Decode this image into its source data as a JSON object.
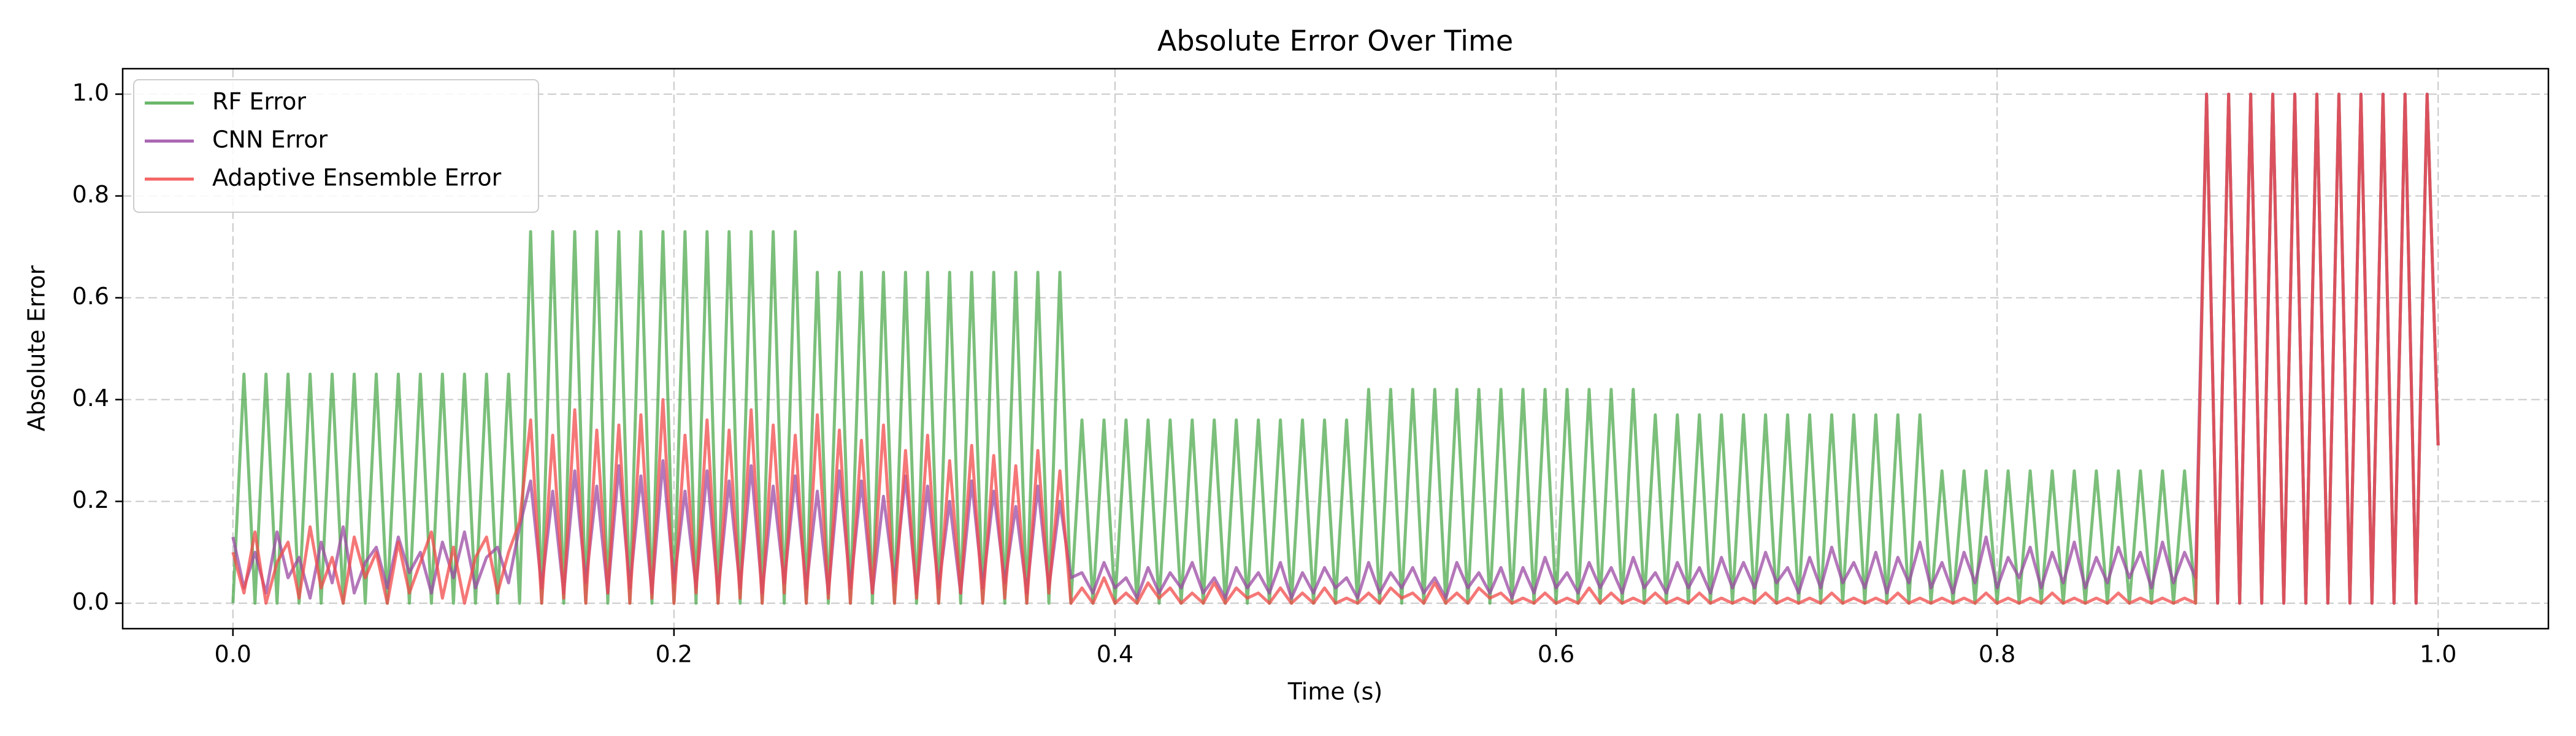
{
  "chart_data": {
    "type": "line",
    "title": "Absolute Error Over Time",
    "xlabel": "Time (s)",
    "ylabel": "Absolute Error",
    "xlim": [
      -0.05,
      1.05
    ],
    "ylim": [
      -0.05,
      1.05
    ],
    "xticks": [
      {
        "value": 0,
        "label": "0.0"
      },
      0.2,
      0.4,
      0.6,
      0.8,
      {
        "value": 1,
        "label": "1.0"
      }
    ],
    "yticks": [
      {
        "value": 0,
        "label": "0.0"
      },
      0.2,
      0.4,
      0.6,
      0.8,
      {
        "value": 1,
        "label": "1.0"
      }
    ],
    "grid": true,
    "legend": "upper left",
    "x": [
      0,
      0.005,
      0.01,
      0.015,
      0.02,
      0.025,
      0.03,
      0.035,
      0.04,
      0.045,
      0.05,
      0.055,
      0.06,
      0.065,
      0.07,
      0.075,
      0.08,
      0.085,
      0.09,
      0.095,
      0.1,
      0.105,
      0.11,
      0.115,
      0.12,
      0.125,
      0.13,
      0.135,
      0.14,
      0.145,
      0.15,
      0.155,
      0.16,
      0.165,
      0.17,
      0.175,
      0.18,
      0.185,
      0.19,
      0.195,
      0.2,
      0.205,
      0.21,
      0.215,
      0.22,
      0.225,
      0.23,
      0.235,
      0.24,
      0.245,
      0.25,
      0.255,
      0.26,
      0.265,
      0.27,
      0.275,
      0.28,
      0.285,
      0.29,
      0.295,
      0.3,
      0.305,
      0.31,
      0.315,
      0.32,
      0.325,
      0.33,
      0.335,
      0.34,
      0.345,
      0.35,
      0.355,
      0.36,
      0.365,
      0.37,
      0.375,
      0.38,
      0.385,
      0.39,
      0.395,
      0.4,
      0.405,
      0.41,
      0.415,
      0.42,
      0.425,
      0.43,
      0.435,
      0.44,
      0.445,
      0.45,
      0.455,
      0.46,
      0.465,
      0.47,
      0.475,
      0.48,
      0.485,
      0.49,
      0.495,
      0.5,
      0.505,
      0.51,
      0.515,
      0.52,
      0.525,
      0.53,
      0.535,
      0.54,
      0.545,
      0.55,
      0.555,
      0.56,
      0.565,
      0.57,
      0.575,
      0.58,
      0.585,
      0.59,
      0.595,
      0.6,
      0.605,
      0.61,
      0.615,
      0.62,
      0.625,
      0.63,
      0.635,
      0.64,
      0.645,
      0.65,
      0.655,
      0.66,
      0.665,
      0.67,
      0.675,
      0.68,
      0.685,
      0.69,
      0.695,
      0.7,
      0.705,
      0.71,
      0.715,
      0.72,
      0.725,
      0.73,
      0.735,
      0.74,
      0.745,
      0.75,
      0.755,
      0.76,
      0.765,
      0.77,
      0.775,
      0.78,
      0.785,
      0.79,
      0.795,
      0.8,
      0.805,
      0.81,
      0.815,
      0.82,
      0.825,
      0.83,
      0.835,
      0.84,
      0.845,
      0.85,
      0.855,
      0.86,
      0.865,
      0.87,
      0.875,
      0.88,
      0.885,
      0.89,
      0.895,
      0.9,
      0.905,
      0.91,
      0.915,
      0.92,
      0.925,
      0.93,
      0.935,
      0.94,
      0.945,
      0.95,
      0.955,
      0.96,
      0.965,
      0.97,
      0.975,
      0.98,
      0.985,
      0.99,
      0.995,
      1
    ],
    "series": [
      {
        "name": "RF Error",
        "color": "#4fa94f",
        "values": [
          0,
          0.45,
          0,
          0.45,
          0,
          0.45,
          0,
          0.45,
          0,
          0.45,
          0,
          0.45,
          0,
          0.45,
          0,
          0.45,
          0,
          0.45,
          0,
          0.45,
          0,
          0.45,
          0,
          0.45,
          0,
          0.45,
          0,
          0.73,
          0,
          0.73,
          0,
          0.73,
          0,
          0.73,
          0,
          0.73,
          0,
          0.73,
          0,
          0.73,
          0,
          0.73,
          0,
          0.73,
          0,
          0.73,
          0,
          0.73,
          0,
          0.73,
          0,
          0.73,
          0,
          0.65,
          0,
          0.65,
          0,
          0.65,
          0,
          0.65,
          0,
          0.65,
          0,
          0.65,
          0,
          0.65,
          0,
          0.65,
          0,
          0.65,
          0,
          0.65,
          0,
          0.65,
          0,
          0.65,
          0,
          0.36,
          0,
          0.36,
          0,
          0.36,
          0,
          0.36,
          0,
          0.36,
          0,
          0.36,
          0,
          0.36,
          0,
          0.36,
          0,
          0.36,
          0,
          0.36,
          0,
          0.36,
          0,
          0.36,
          0,
          0.36,
          0,
          0.42,
          0,
          0.42,
          0,
          0.42,
          0,
          0.42,
          0,
          0.42,
          0,
          0.42,
          0,
          0.42,
          0,
          0.42,
          0,
          0.42,
          0,
          0.42,
          0,
          0.42,
          0,
          0.42,
          0,
          0.42,
          0,
          0.37,
          0,
          0.37,
          0,
          0.37,
          0,
          0.37,
          0,
          0.37,
          0,
          0.37,
          0,
          0.37,
          0,
          0.37,
          0,
          0.37,
          0,
          0.37,
          0,
          0.37,
          0,
          0.37,
          0,
          0.37,
          0,
          0.26,
          0,
          0.26,
          0,
          0.26,
          0,
          0.26,
          0,
          0.26,
          0,
          0.26,
          0,
          0.26,
          0,
          0.26,
          0,
          0.26,
          0,
          0.26,
          0,
          0.26,
          0,
          0.26,
          0,
          1,
          0,
          1,
          0,
          1,
          0,
          1,
          0,
          1,
          0,
          1,
          0,
          1,
          0,
          1,
          0,
          1,
          0,
          1,
          0,
          1,
          0.31
        ]
      },
      {
        "name": "CNN Error",
        "color": "#9b4aa3",
        "values": [
          0.13,
          0.03,
          0.1,
          0.02,
          0.14,
          0.05,
          0.09,
          0.01,
          0.12,
          0.04,
          0.15,
          0.02,
          0.08,
          0.11,
          0.03,
          0.13,
          0.06,
          0.1,
          0.02,
          0.12,
          0.05,
          0.14,
          0.03,
          0.09,
          0.11,
          0.04,
          0.15,
          0.24,
          0.03,
          0.22,
          0.02,
          0.26,
          0.04,
          0.23,
          0.02,
          0.27,
          0.03,
          0.25,
          0.02,
          0.28,
          0.04,
          0.22,
          0.03,
          0.26,
          0.02,
          0.24,
          0.03,
          0.27,
          0.02,
          0.23,
          0.04,
          0.25,
          0.03,
          0.22,
          0.02,
          0.26,
          0.03,
          0.24,
          0.02,
          0.21,
          0.04,
          0.25,
          0.02,
          0.23,
          0.03,
          0.2,
          0.02,
          0.24,
          0.03,
          0.22,
          0.04,
          0.19,
          0.02,
          0.23,
          0.03,
          0.2,
          0.05,
          0.06,
          0.02,
          0.08,
          0.03,
          0.05,
          0.01,
          0.07,
          0.02,
          0.06,
          0.03,
          0.08,
          0.02,
          0.05,
          0.01,
          0.07,
          0.03,
          0.06,
          0.02,
          0.08,
          0.01,
          0.06,
          0.02,
          0.07,
          0.03,
          0.05,
          0.01,
          0.08,
          0.02,
          0.06,
          0.03,
          0.07,
          0.02,
          0.05,
          0.01,
          0.08,
          0.03,
          0.06,
          0.02,
          0.07,
          0.01,
          0.07,
          0.02,
          0.09,
          0.03,
          0.06,
          0.02,
          0.08,
          0.03,
          0.07,
          0.02,
          0.09,
          0.03,
          0.06,
          0.02,
          0.08,
          0.03,
          0.07,
          0.02,
          0.09,
          0.03,
          0.08,
          0.03,
          0.1,
          0.04,
          0.07,
          0.02,
          0.09,
          0.03,
          0.11,
          0.04,
          0.08,
          0.03,
          0.1,
          0.02,
          0.09,
          0.04,
          0.12,
          0.03,
          0.08,
          0.02,
          0.1,
          0.04,
          0.13,
          0.03,
          0.09,
          0.05,
          0.11,
          0.03,
          0.1,
          0.04,
          0.12,
          0.03,
          0.09,
          0.04,
          0.11,
          0.05,
          0.1,
          0.03,
          0.12,
          0.04,
          0.1,
          0.05,
          1,
          0,
          1,
          0,
          1,
          0,
          1,
          0,
          1,
          0,
          1,
          0,
          1,
          0,
          1,
          0,
          1,
          0,
          1,
          0,
          1,
          0.31
        ]
      },
      {
        "name": "Adaptive Ensemble Error",
        "color": "#f24a4a",
        "values": [
          0.1,
          0.02,
          0.14,
          0,
          0.08,
          0.12,
          0.01,
          0.15,
          0.03,
          0.09,
          0,
          0.13,
          0.05,
          0.1,
          0,
          0.12,
          0.02,
          0.08,
          0.14,
          0.01,
          0.11,
          0,
          0.09,
          0.13,
          0.02,
          0.1,
          0.16,
          0.36,
          0,
          0.33,
          0.01,
          0.38,
          0,
          0.34,
          0.02,
          0.35,
          0,
          0.37,
          0.01,
          0.4,
          0,
          0.33,
          0.02,
          0.36,
          0,
          0.34,
          0.01,
          0.38,
          0,
          0.35,
          0.02,
          0.33,
          0,
          0.37,
          0.01,
          0.34,
          0,
          0.32,
          0.02,
          0.35,
          0,
          0.3,
          0.01,
          0.33,
          0,
          0.28,
          0.02,
          0.31,
          0,
          0.29,
          0.01,
          0.27,
          0,
          0.3,
          0.02,
          0.26,
          0,
          0.03,
          0,
          0.05,
          0,
          0.02,
          0,
          0.04,
          0.01,
          0.03,
          0,
          0.02,
          0,
          0.04,
          0,
          0.03,
          0.01,
          0.02,
          0,
          0.03,
          0,
          0.02,
          0,
          0.03,
          0,
          0.01,
          0,
          0.02,
          0,
          0.03,
          0.01,
          0.02,
          0,
          0.04,
          0,
          0.02,
          0,
          0.03,
          0.01,
          0.02,
          0,
          0.01,
          0,
          0.02,
          0,
          0.01,
          0,
          0.03,
          0,
          0.02,
          0,
          0.01,
          0,
          0.02,
          0,
          0.01,
          0,
          0.02,
          0,
          0.01,
          0,
          0.01,
          0,
          0.02,
          0,
          0.01,
          0,
          0.01,
          0,
          0.02,
          0,
          0.01,
          0,
          0.01,
          0,
          0.02,
          0,
          0.01,
          0,
          0.01,
          0,
          0.01,
          0,
          0.02,
          0,
          0.01,
          0,
          0.01,
          0,
          0.02,
          0,
          0.01,
          0,
          0.01,
          0,
          0.02,
          0,
          0.01,
          0,
          0.01,
          0,
          0.01,
          0,
          1,
          0,
          1,
          0,
          1,
          0,
          1,
          0,
          1,
          0,
          1,
          0,
          1,
          0,
          1,
          0,
          1,
          0,
          1,
          0,
          1,
          0.31
        ]
      }
    ]
  }
}
